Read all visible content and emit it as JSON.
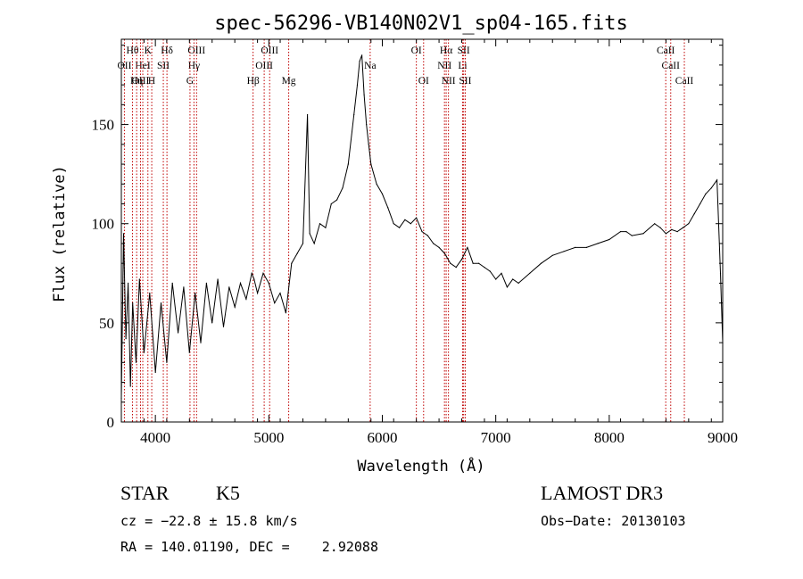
{
  "chart_data": {
    "type": "line",
    "title": "spec-56296-VB140N02V1_sp04-165.fits",
    "xlabel": "Wavelength (Å)",
    "ylabel": "Flux (relative)",
    "xlim": [
      3700,
      9000
    ],
    "ylim": [
      0,
      193
    ],
    "xticks": [
      4000,
      5000,
      6000,
      7000,
      8000,
      9000
    ],
    "yticks": [
      0,
      50,
      100,
      150
    ],
    "series": [
      {
        "name": "flux",
        "x": [
          3700,
          3720,
          3740,
          3760,
          3780,
          3800,
          3830,
          3860,
          3900,
          3950,
          4000,
          4050,
          4100,
          4150,
          4200,
          4250,
          4300,
          4350,
          4400,
          4450,
          4500,
          4550,
          4600,
          4650,
          4700,
          4750,
          4800,
          4850,
          4870,
          4900,
          4950,
          5000,
          5050,
          5100,
          5150,
          5200,
          5250,
          5300,
          5340,
          5360,
          5400,
          5450,
          5500,
          5550,
          5600,
          5650,
          5700,
          5750,
          5780,
          5800,
          5820,
          5840,
          5860,
          5880,
          5900,
          5950,
          6000,
          6050,
          6100,
          6150,
          6200,
          6250,
          6300,
          6350,
          6400,
          6450,
          6500,
          6550,
          6600,
          6650,
          6700,
          6750,
          6800,
          6850,
          6900,
          6950,
          7000,
          7050,
          7100,
          7150,
          7200,
          7300,
          7400,
          7500,
          7600,
          7700,
          7800,
          7900,
          8000,
          8100,
          8150,
          8200,
          8300,
          8400,
          8450,
          8500,
          8550,
          8600,
          8650,
          8700,
          8750,
          8800,
          8850,
          8900,
          8950,
          8980,
          9000
        ],
        "y": [
          12,
          95,
          42,
          70,
          18,
          60,
          30,
          72,
          35,
          65,
          25,
          60,
          30,
          70,
          45,
          68,
          35,
          65,
          40,
          70,
          50,
          72,
          48,
          68,
          58,
          70,
          62,
          75,
          72,
          65,
          75,
          70,
          60,
          65,
          55,
          80,
          85,
          90,
          155,
          95,
          90,
          100,
          98,
          110,
          112,
          118,
          130,
          155,
          170,
          182,
          185,
          165,
          150,
          140,
          130,
          120,
          115,
          108,
          100,
          98,
          102,
          100,
          103,
          96,
          94,
          90,
          88,
          85,
          80,
          78,
          82,
          88,
          80,
          80,
          78,
          76,
          72,
          75,
          68,
          72,
          70,
          75,
          80,
          84,
          86,
          88,
          88,
          90,
          92,
          96,
          96,
          94,
          95,
          100,
          98,
          95,
          97,
          96,
          98,
          100,
          105,
          110,
          115,
          118,
          122,
          75,
          40
        ]
      }
    ],
    "lines": [
      {
        "label": "Hθ",
        "x": 3798,
        "row": 0
      },
      {
        "label": "K",
        "x": 3934,
        "row": 0
      },
      {
        "label": "Hδ",
        "x": 4102,
        "row": 0
      },
      {
        "label": "OIII",
        "x": 4363,
        "row": 0
      },
      {
        "label": "OIII",
        "x": 5007,
        "row": 0
      },
      {
        "label": "OI",
        "x": 6300,
        "row": 0
      },
      {
        "label": "Hα",
        "x": 6563,
        "row": 0
      },
      {
        "label": "SII",
        "x": 6717,
        "row": 0
      },
      {
        "label": "CaII",
        "x": 8498,
        "row": 0
      },
      {
        "label": "OII",
        "x": 3727,
        "row": 1
      },
      {
        "label": "HeI",
        "x": 3889,
        "row": 1
      },
      {
        "label": "SII",
        "x": 4070,
        "row": 1
      },
      {
        "label": "Hγ",
        "x": 4340,
        "row": 1
      },
      {
        "label": "OIII",
        "x": 4959,
        "row": 1
      },
      {
        "label": "Na",
        "x": 5893,
        "row": 1
      },
      {
        "label": "NII",
        "x": 6548,
        "row": 1
      },
      {
        "label": "Li",
        "x": 6708,
        "row": 1
      },
      {
        "label": "CaII",
        "x": 8542,
        "row": 1
      },
      {
        "label": "OIII",
        "x": 3869,
        "row": 2
      },
      {
        "label": "Hη",
        "x": 3835,
        "row": 2
      },
      {
        "label": "H",
        "x": 3968,
        "row": 2
      },
      {
        "label": "G",
        "x": 4305,
        "row": 2
      },
      {
        "label": "Hβ",
        "x": 4861,
        "row": 2
      },
      {
        "label": "Mg",
        "x": 5175,
        "row": 2
      },
      {
        "label": "OI",
        "x": 6364,
        "row": 2
      },
      {
        "label": "NII",
        "x": 6583,
        "row": 2
      },
      {
        "label": "SII",
        "x": 6731,
        "row": 2
      },
      {
        "label": "CaII",
        "x": 8662,
        "row": 2
      }
    ]
  },
  "info": {
    "object_class": "STAR",
    "subclass": "K5",
    "survey": "LAMOST DR3",
    "cz": "cz = −22.8 ± 15.8 km/s",
    "obs_date": "Obs−Date: 20130103",
    "coords": "RA = 140.01190, DEC =    2.92088"
  }
}
